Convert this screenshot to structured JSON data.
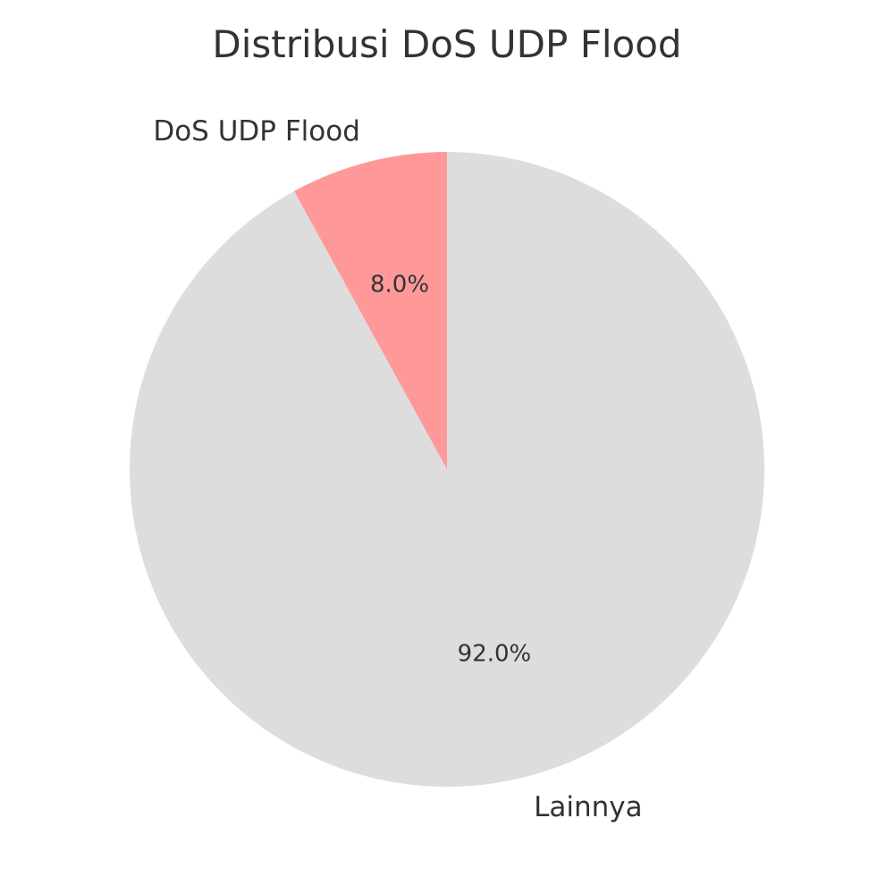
{
  "chart_data": {
    "type": "pie",
    "title": "Distribusi DoS UDP Flood",
    "slices": [
      {
        "label": "DoS UDP Flood",
        "value": 8.0,
        "pct_label": "8.0%",
        "color": "#ff9999"
      },
      {
        "label": "Lainnya",
        "value": 92.0,
        "pct_label": "92.0%",
        "color": "#dddddd"
      }
    ],
    "start_angle_deg": 90,
    "direction": "counterclockwise",
    "legend": "none"
  }
}
